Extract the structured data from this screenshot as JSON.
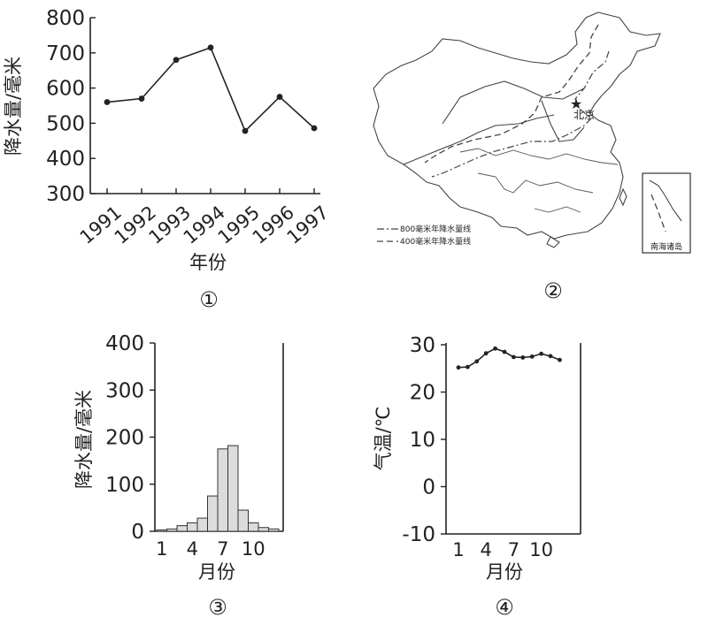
{
  "chart_data": [
    {
      "type": "line",
      "panel_label": "①",
      "xlabel": "年份",
      "ylabel": "降水量/毫米",
      "x": [
        "1991",
        "1992",
        "1993",
        "1994",
        "1995",
        "1996",
        "1997"
      ],
      "values": [
        560,
        570,
        680,
        715,
        478,
        575,
        486
      ],
      "ylim": [
        300,
        800
      ],
      "yticks": [
        300,
        400,
        500,
        600,
        700,
        800
      ]
    },
    {
      "type": "bar",
      "panel_label": "③",
      "xlabel": "月份",
      "ylabel": "降水量/毫米",
      "categories": [
        1,
        2,
        3,
        4,
        5,
        6,
        7,
        8,
        9,
        10,
        11,
        12
      ],
      "xtick_labels": [
        "1",
        "4",
        "7",
        "10"
      ],
      "values": [
        3,
        5,
        12,
        18,
        28,
        75,
        175,
        182,
        45,
        18,
        8,
        5
      ],
      "ylim": [
        0,
        400
      ],
      "yticks": [
        0,
        100,
        200,
        300,
        400
      ]
    },
    {
      "type": "line",
      "panel_label": "④",
      "xlabel": "月份",
      "ylabel": "气温/℃",
      "x": [
        1,
        2,
        3,
        4,
        5,
        6,
        7,
        8,
        9,
        10,
        11,
        12
      ],
      "xtick_labels": [
        "1",
        "4",
        "7",
        "10"
      ],
      "values": [
        25.2,
        25.3,
        26.5,
        28.2,
        29.2,
        28.5,
        27.4,
        27.3,
        27.5,
        28.1,
        27.6,
        26.8
      ],
      "ylim": [
        -10,
        30
      ],
      "yticks": [
        -10,
        0,
        10,
        20,
        30
      ]
    }
  ],
  "map": {
    "panel_label": "②",
    "city_label": "北京",
    "legend": [
      {
        "label": "800毫米年降水量线"
      },
      {
        "label": "400毫米年降水量线"
      }
    ],
    "inset_label": "南海诸岛"
  }
}
